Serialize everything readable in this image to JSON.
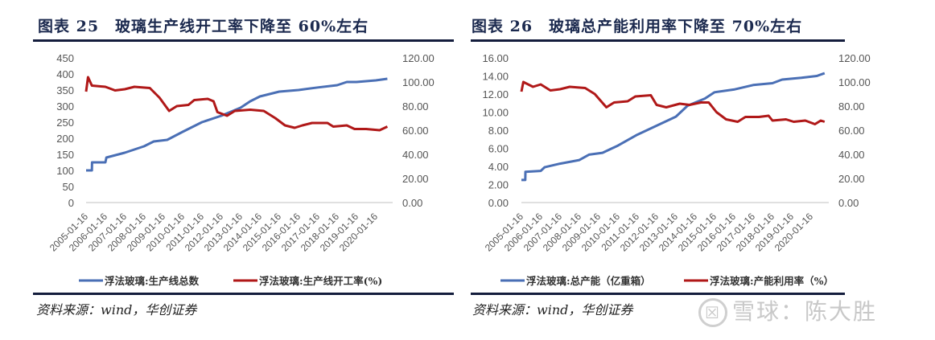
{
  "chart_data": [
    {
      "type": "line",
      "title": "图表 25　玻璃生产线开工率下降至 60%左右",
      "source": "资料来源：wind，华创证券",
      "x_tick_labels": [
        "2005-01-16",
        "2006-01-16",
        "2007-01-16",
        "2008-01-16",
        "2009-01-16",
        "2010-01-16",
        "2011-01-16",
        "2012-01-16",
        "2013-01-16",
        "2014-01-16",
        "2015-01-16",
        "2016-01-16",
        "2017-01-16",
        "2018-01-16",
        "2019-01-16",
        "2020-01-16"
      ],
      "left_axis": {
        "range": [
          0,
          450
        ],
        "ticks": [
          "0",
          "50",
          "100",
          "150",
          "200",
          "250",
          "300",
          "350",
          "400",
          "450"
        ]
      },
      "right_axis": {
        "range": [
          0,
          120
        ],
        "ticks": [
          "0.00",
          "20.00",
          "40.00",
          "60.00",
          "80.00",
          "100.00",
          "120.00"
        ]
      },
      "legend_position": "bottom",
      "grid": false,
      "series": [
        {
          "name": "浮法玻璃:生产线总数",
          "axis": "left",
          "color": "#4a6fb5",
          "x": [
            2005.0,
            2005.3,
            2005.31,
            2006.0,
            2006.05,
            2007.0,
            2008.0,
            2008.5,
            2009.2,
            2010.0,
            2011.0,
            2012.0,
            2013.0,
            2013.5,
            2014.0,
            2015.0,
            2016.0,
            2017.0,
            2018.0,
            2018.5,
            2019.0,
            2020.0,
            2020.6
          ],
          "y": [
            100,
            100,
            125,
            125,
            140,
            155,
            175,
            190,
            195,
            220,
            250,
            270,
            295,
            315,
            330,
            345,
            350,
            358,
            365,
            375,
            375,
            380,
            385
          ]
        },
        {
          "name": "浮法玻璃:生产线开工率(%)",
          "axis": "right",
          "color": "#b01818",
          "x": [
            2005.0,
            2005.1,
            2005.3,
            2006.0,
            2006.5,
            2007.0,
            2007.5,
            2008.3,
            2008.8,
            2009.3,
            2009.7,
            2010.3,
            2010.6,
            2011.3,
            2011.6,
            2011.8,
            2012.3,
            2012.7,
            2013.5,
            2014.2,
            2014.8,
            2015.3,
            2015.8,
            2016.2,
            2016.7,
            2017.5,
            2017.8,
            2018.5,
            2018.9,
            2019.5,
            2020.2,
            2020.6
          ],
          "y": [
            92,
            104,
            97,
            96,
            93,
            94,
            96,
            95,
            87,
            76,
            80,
            81,
            85,
            86,
            84,
            75,
            72,
            76,
            77,
            76,
            70,
            64,
            62,
            64,
            66,
            66,
            63,
            64,
            61,
            61,
            60,
            63
          ]
        }
      ]
    },
    {
      "type": "line",
      "title": "图表 26　玻璃总产能利用率下降至 70%左右",
      "source": "资料来源：wind，华创证券",
      "x_tick_labels": [
        "2005-01-16",
        "2006-01-16",
        "2007-01-16",
        "2008-01-16",
        "2009-01-16",
        "2010-01-16",
        "2011-01-16",
        "2012-01-16",
        "2013-01-16",
        "2014-01-16",
        "2015-01-16",
        "2016-01-16",
        "2017-01-16",
        "2018-01-16",
        "2019-01-16",
        "2020-01-16"
      ],
      "left_axis": {
        "range": [
          0,
          16
        ],
        "ticks": [
          "0.00",
          "2.00",
          "4.00",
          "6.00",
          "8.00",
          "10.00",
          "12.00",
          "14.00",
          "16.00"
        ]
      },
      "right_axis": {
        "range": [
          0,
          120
        ],
        "ticks": [
          "0.00",
          "20.00",
          "40.00",
          "60.00",
          "80.00",
          "100.00",
          "120.00"
        ]
      },
      "legend_position": "bottom",
      "grid": false,
      "series": [
        {
          "name": "浮法玻璃:总产能（亿重箱）",
          "axis": "left",
          "color": "#4a6fb5",
          "x": [
            2005.0,
            2005.2,
            2005.21,
            2006.0,
            2006.2,
            2007.0,
            2008.0,
            2008.5,
            2009.2,
            2010.0,
            2011.0,
            2012.0,
            2013.0,
            2013.6,
            2014.5,
            2015.0,
            2016.0,
            2017.0,
            2018.0,
            2018.5,
            2019.5,
            2020.3,
            2020.7
          ],
          "y": [
            2.5,
            2.5,
            3.4,
            3.5,
            3.9,
            4.3,
            4.7,
            5.3,
            5.5,
            6.3,
            7.5,
            8.5,
            9.5,
            10.7,
            11.5,
            12.2,
            12.5,
            13.0,
            13.2,
            13.6,
            13.8,
            14.0,
            14.3
          ]
        },
        {
          "name": "浮法玻璃:产能利用率（%）",
          "axis": "right",
          "color": "#b01818",
          "x": [
            2005.0,
            2005.1,
            2005.6,
            2006.0,
            2006.5,
            2007.0,
            2007.5,
            2008.3,
            2008.8,
            2009.4,
            2009.8,
            2010.5,
            2010.9,
            2011.7,
            2012.0,
            2012.5,
            2013.2,
            2013.7,
            2014.3,
            2014.7,
            2015.1,
            2015.6,
            2016.2,
            2016.6,
            2017.3,
            2017.8,
            2018.0,
            2018.7,
            2019.1,
            2019.7,
            2020.2,
            2020.5,
            2020.7
          ],
          "y": [
            92,
            100,
            96,
            98,
            93,
            94,
            96,
            95,
            90,
            79,
            83,
            84,
            88,
            89,
            81,
            79,
            82,
            81,
            83,
            83,
            75,
            69,
            67,
            71,
            71,
            72,
            68,
            69,
            67,
            68,
            65,
            68,
            67
          ]
        }
      ]
    }
  ],
  "watermark": {
    "logo": "☒",
    "text": "雪球：陈大胜"
  }
}
